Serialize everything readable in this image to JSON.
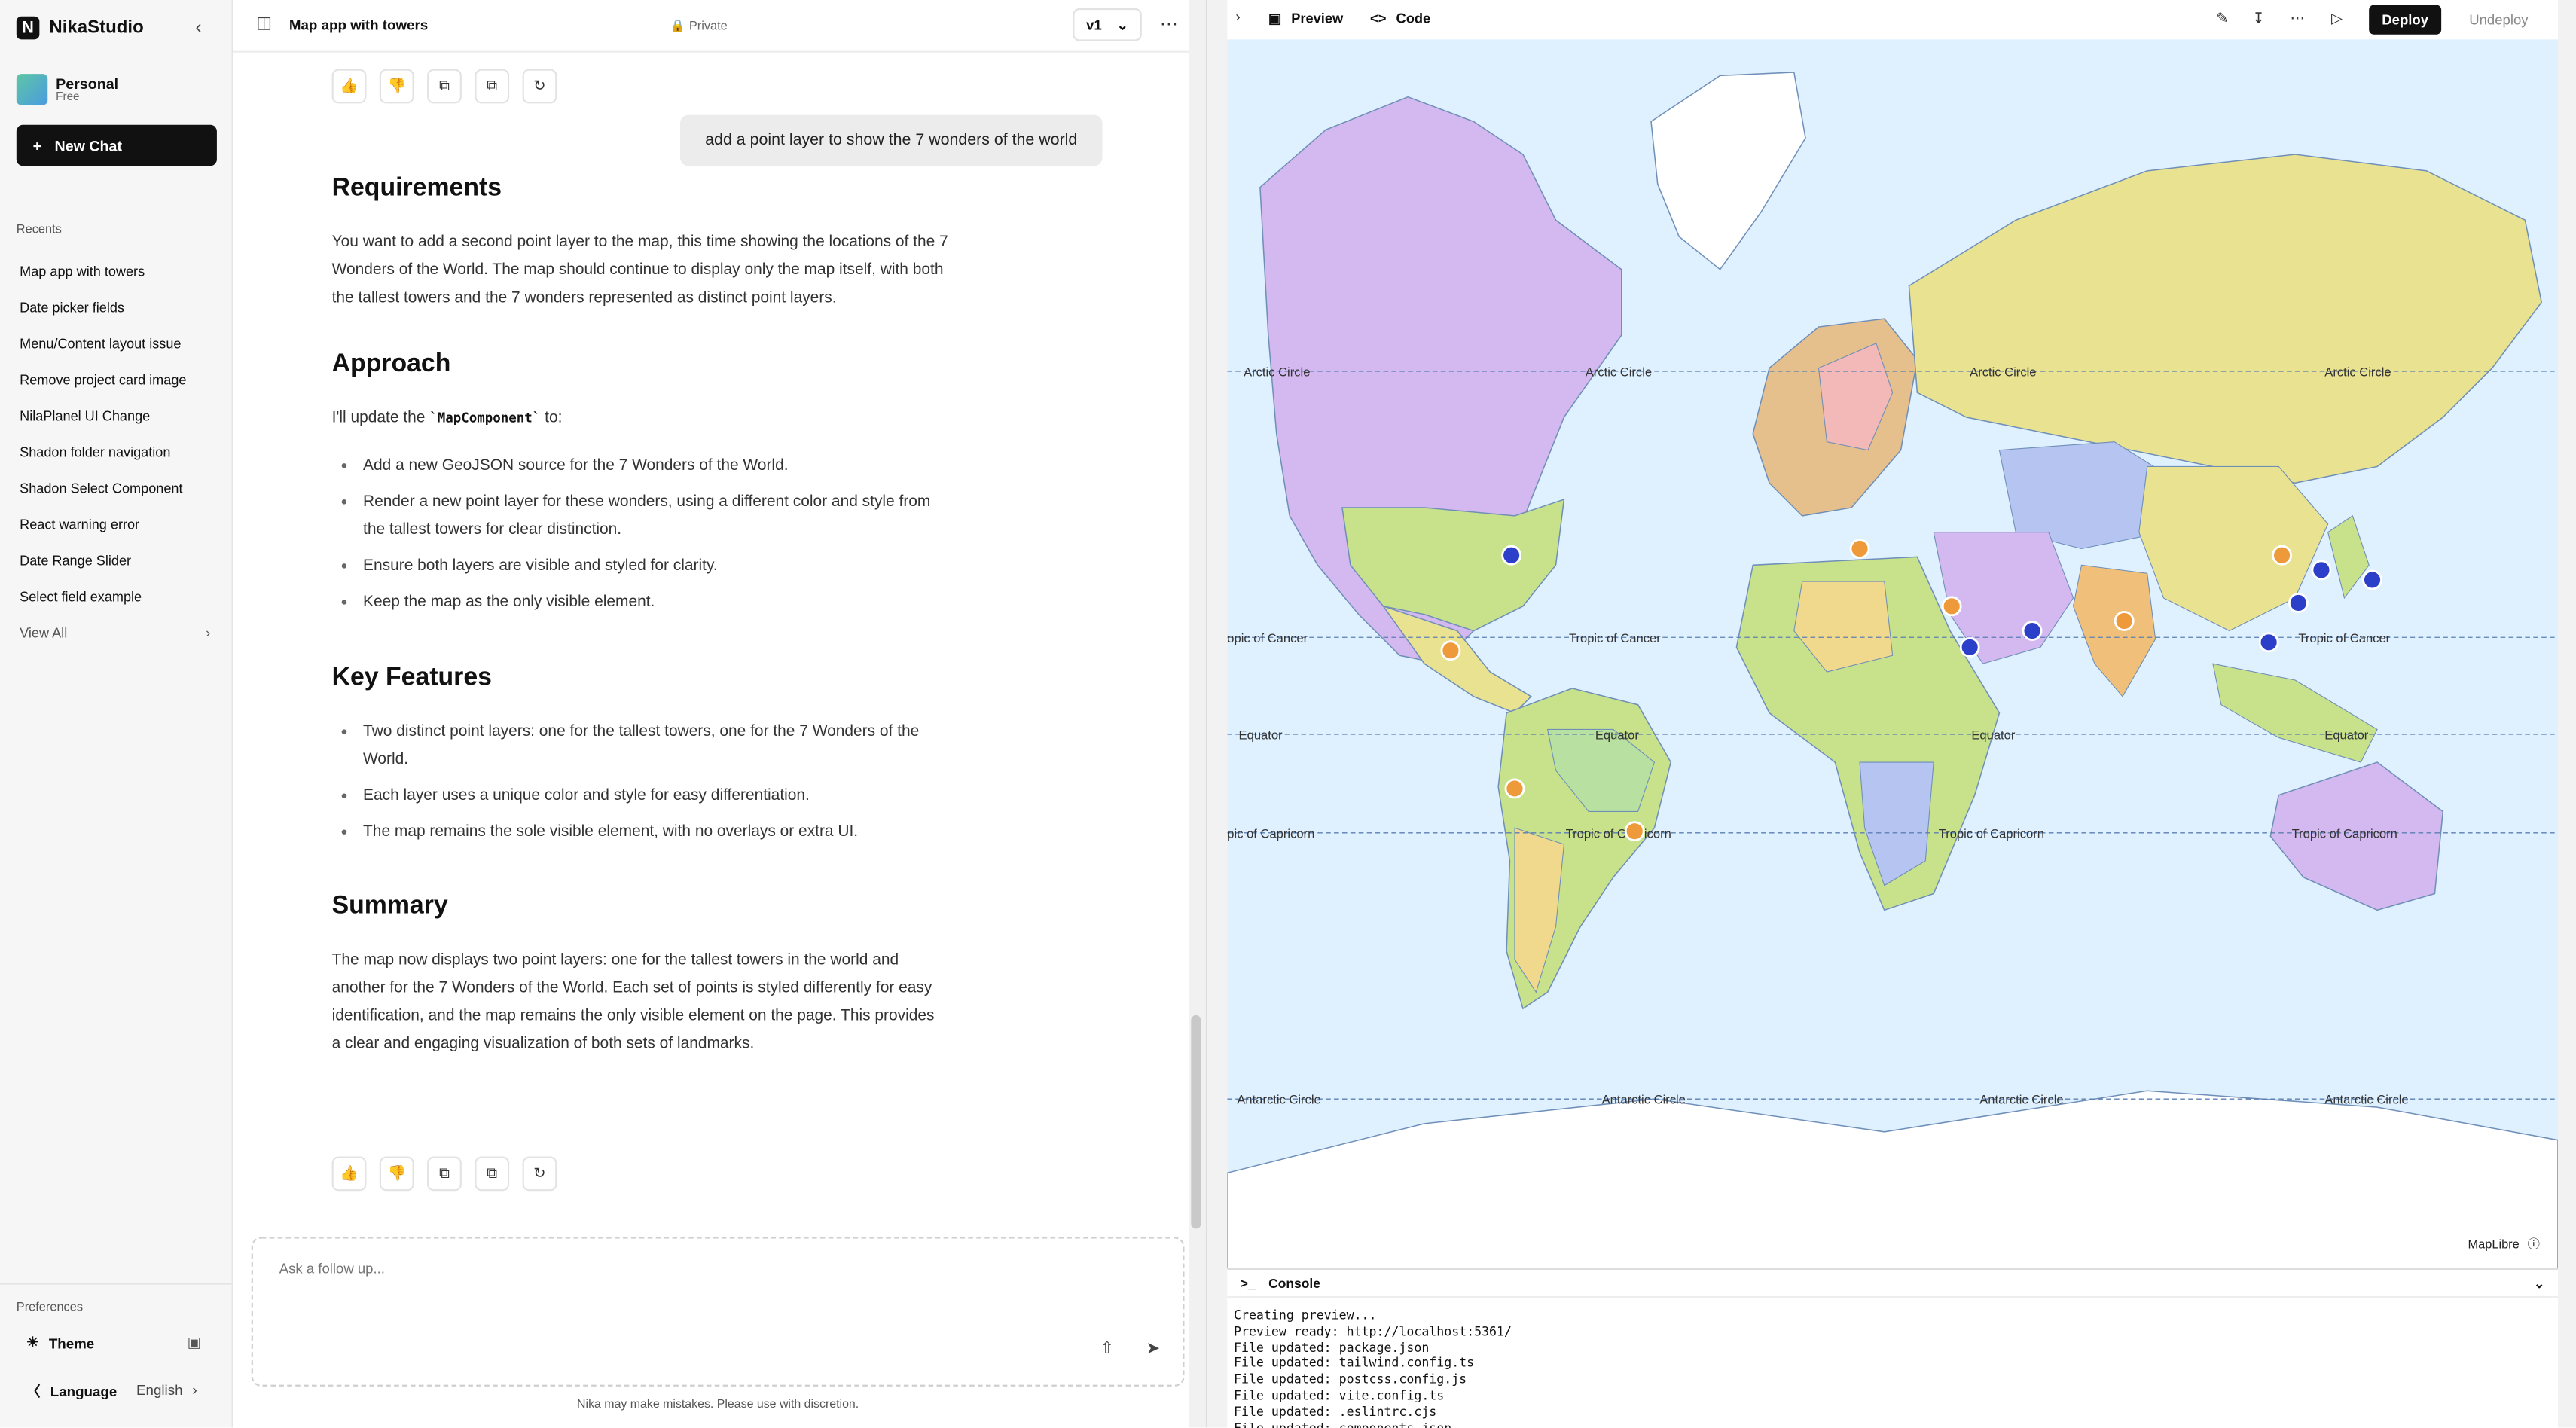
{
  "sidebar": {
    "brand": "NikaStudio",
    "workspace_name": "Personal",
    "workspace_plan": "Free",
    "new_chat": "New Chat",
    "recents_heading": "Recents",
    "recents": [
      "Map app with towers",
      "Date picker fields",
      "Menu/Content layout issue",
      "Remove project card image",
      "NilaPlanel UI Change",
      "Shadon folder navigation",
      "Shadon Select Component",
      "React warning error",
      "Date Range Slider",
      "Select field example"
    ],
    "view_all": "View All",
    "preferences_heading": "Preferences",
    "theme_label": "Theme",
    "language_label": "Language",
    "language_value": "English"
  },
  "chat": {
    "title": "Map app with towers",
    "visibility": "Private",
    "version": "v1",
    "user_message": "add a point layer to show the 7 wonders of the world",
    "requirements_heading": "Requirements",
    "requirements_text": "You want to add a second point layer to the map, this time showing the locations of the 7 Wonders of the World. The map should continue to display only the map itself, with both the tallest towers and the 7 wonders represented as distinct point layers.",
    "approach_heading": "Approach",
    "approach_intro_pre": "I'll update the ",
    "approach_intro_code": "`MapComponent`",
    "approach_intro_post": " to:",
    "approach_items": [
      "Add a new GeoJSON source for the 7 Wonders of the World.",
      "Render a new point layer for these wonders, using a different color and style from the tallest towers for clear distinction.",
      "Ensure both layers are visible and styled for clarity.",
      "Keep the map as the only visible element."
    ],
    "features_heading": "Key Features",
    "features_items": [
      "Two distinct point layers: one for the tallest towers, one for the 7 Wonders of the World.",
      "Each layer uses a unique color and style for easy differentiation.",
      "The map remains the sole visible element, with no overlays or extra UI."
    ],
    "summary_heading": "Summary",
    "summary_text": "The map now displays two point layers: one for the tallest towers in the world and another for the 7 Wonders of the World. Each set of points is styled differently for easy identification, and the map remains the only visible element on the page. This provides a clear and engaging visualization of both sets of landmarks.",
    "composer_placeholder": "Ask a follow up...",
    "disclaimer": "Nika may make mistakes. Please use with discretion."
  },
  "preview": {
    "tab_preview": "Preview",
    "tab_code": "Code",
    "deploy": "Deploy",
    "undeploy": "Undeploy",
    "attribution": "MapLibre",
    "map_labels": {
      "arctic": "Arctic Circle",
      "cancer": "Tropic of Cancer",
      "cancer_partial": "opic of Cancer",
      "equator": "Equator",
      "capricorn": "Tropic of Capricorn",
      "capricorn_partial": "pic of Capricorn",
      "antarctic": "Antarctic Circle"
    },
    "colors": {
      "towers": "#2b3fc9",
      "wonders": "#ee9a3a",
      "water": "#dff0ff"
    },
    "console_title": "Console",
    "console_lines": [
      "Creating preview...",
      "Preview ready: http://localhost:5361/",
      "File updated: package.json",
      "File updated: tailwind.config.ts",
      "File updated: postcss.config.js",
      "File updated: vite.config.ts",
      "File updated: .eslintrc.cjs",
      "File updated: components.json"
    ]
  }
}
